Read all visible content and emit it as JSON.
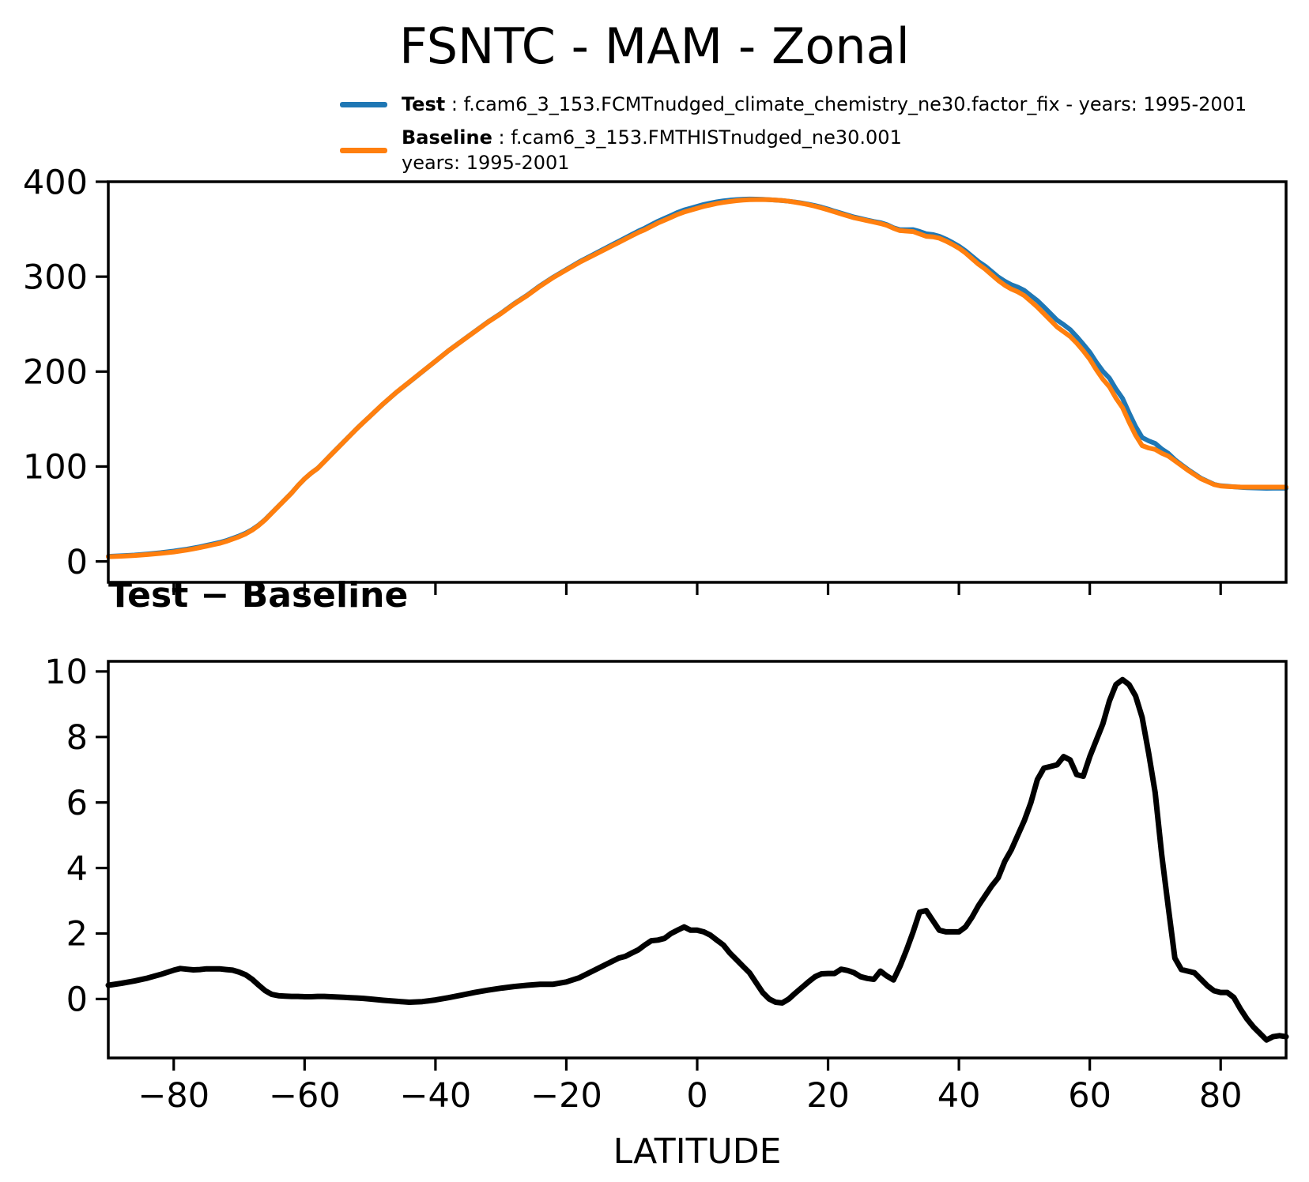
{
  "title": "FSNTC - MAM - Zonal",
  "legend": {
    "test_label": "Test",
    "test_desc": " : f.cam6_3_153.FCMTnudged_climate_chemistry_ne30.factor_fix - years: 1995-2001",
    "baseline_label": "Baseline",
    "baseline_desc": " : f.cam6_3_153.FMTHISTnudged_ne30.001",
    "baseline_years": "years: 1995-2001"
  },
  "colors": {
    "test": "#1f77b4",
    "baseline": "#ff7f0e",
    "diff": "#000000",
    "axes": "#000000"
  },
  "diff_title": "Test − Baseline",
  "xlabel": "LATITUDE",
  "chart_data": [
    {
      "type": "line",
      "title": "FSNTC - MAM - Zonal",
      "xlabel": "",
      "ylabel": "",
      "xlim": [
        -90,
        90
      ],
      "ylim": [
        -22,
        400
      ],
      "xticks": [
        -80,
        -60,
        -40,
        -20,
        0,
        20,
        40,
        60,
        80
      ],
      "yticks": [
        0,
        100,
        200,
        300,
        400
      ],
      "x_tick_labels_shown": false,
      "grid": false,
      "legend_position": "above-top-left",
      "x": [
        -90,
        -88,
        -86,
        -84,
        -82,
        -80,
        -79,
        -78,
        -77,
        -76,
        -75,
        -74,
        -73,
        -72,
        -71,
        -70,
        -69,
        -68,
        -67,
        -66,
        -65,
        -64,
        -63,
        -62,
        -61,
        -60,
        -59,
        -58,
        -57,
        -56,
        -55,
        -54,
        -53,
        -52,
        -51,
        -50,
        -48,
        -46,
        -44,
        -42,
        -40,
        -38,
        -36,
        -34,
        -32,
        -30,
        -28,
        -26,
        -24,
        -22,
        -20,
        -18,
        -16,
        -14,
        -13,
        -12,
        -11,
        -10,
        -9,
        -8,
        -7,
        -6,
        -5,
        -4,
        -3,
        -2,
        -1,
        0,
        1,
        2,
        3,
        4,
        5,
        6,
        7,
        8,
        9,
        10,
        11,
        12,
        13,
        14,
        15,
        16,
        17,
        18,
        19,
        20,
        21,
        22,
        23,
        24,
        25,
        26,
        27,
        28,
        29,
        30,
        31,
        32,
        33,
        34,
        35,
        36,
        37,
        38,
        39,
        40,
        41,
        42,
        43,
        44,
        45,
        46,
        47,
        48,
        49,
        50,
        51,
        52,
        53,
        54,
        55,
        56,
        57,
        58,
        59,
        60,
        61,
        62,
        63,
        64,
        65,
        66,
        67,
        68,
        69,
        70,
        71,
        72,
        73,
        74,
        75,
        76,
        77,
        78,
        79,
        80,
        81,
        82,
        83,
        84,
        85,
        86,
        87,
        88,
        89,
        90
      ],
      "series": [
        {
          "name": "Test",
          "values": [
            5.42,
            5.98,
            6.75,
            7.84,
            9.25,
            10.88,
            11.93,
            12.91,
            14.09,
            15.4,
            16.92,
            18.42,
            19.92,
            21.9,
            24.38,
            26.82,
            29.74,
            33.6,
            38.42,
            44.25,
            51.14,
            58.1,
            65.09,
            72.08,
            80.08,
            87.07,
            93.07,
            98.08,
            105.08,
            112.07,
            119.06,
            126.05,
            133.04,
            140.03,
            146.52,
            153,
            165.96,
            177.93,
            188.9,
            199.92,
            210.97,
            222.04,
            232.12,
            242.2,
            252.27,
            261.33,
            271.38,
            280.42,
            290.45,
            299.45,
            307.52,
            315.65,
            322.85,
            330.05,
            333.65,
            337.25,
            340.8,
            344.4,
            348,
            351.15,
            354.78,
            358.3,
            361.35,
            364.5,
            367.6,
            370.2,
            372.1,
            374.1,
            376.05,
            377.45,
            378.8,
            379.85,
            380.6,
            381.2,
            381.6,
            381.8,
            381.7,
            381.4,
            381,
            380.6,
            380.08,
            379.4,
            378.58,
            377.55,
            376.32,
            374.88,
            373.17,
            371.18,
            368.98,
            366.91,
            364.87,
            362.8,
            361.18,
            359.63,
            358.1,
            356.85,
            354.7,
            351.58,
            349.5,
            349.5,
            349.55,
            347.65,
            345.2,
            344.4,
            342.6,
            339.55,
            336.05,
            332.05,
            327.2,
            321.5,
            315.85,
            311.15,
            305.45,
            299.7,
            295.2,
            291.55,
            289,
            285.45,
            280,
            274.7,
            268.05,
            261.1,
            254.15,
            249.4,
            244.3,
            236.85,
            228.8,
            220.4,
            209.9,
            200.4,
            193.1,
            181.6,
            171.75,
            156.6,
            142.25,
            130.6,
            127,
            124.3,
            118.4,
            113.8,
            107.25,
            101.9,
            96.85,
            92.3,
            87.6,
            84.4,
            81.25,
            79.7,
            79.2,
            78.65,
            78.1,
            77.7,
            77.45,
            77.25,
            77.05,
            77.15,
            77.18,
            77.15
          ]
        },
        {
          "name": "Baseline",
          "values": [
            5,
            5.5,
            6.2,
            7.2,
            8.5,
            10,
            11,
            12,
            13.2,
            14.5,
            16,
            17.5,
            19,
            21,
            23.5,
            26,
            29,
            33,
            38,
            44,
            51,
            58,
            65,
            72,
            80,
            87,
            93,
            98,
            105,
            112,
            119,
            126,
            133,
            140,
            146.5,
            153,
            166,
            178,
            189,
            200,
            211,
            222,
            232,
            242,
            252,
            261,
            271,
            280,
            290,
            299,
            307,
            315,
            322,
            329,
            332.5,
            336,
            339.5,
            343,
            346.5,
            349.5,
            353,
            356.5,
            359.5,
            362.5,
            365.5,
            368,
            370,
            372,
            374,
            375.5,
            377,
            378.2,
            379.2,
            380,
            380.6,
            381,
            381.2,
            381.2,
            381,
            380.7,
            380.2,
            379.4,
            378.4,
            377.2,
            375.8,
            374.2,
            372.4,
            370.4,
            368.2,
            366,
            364,
            362,
            360.5,
            359,
            357.5,
            356,
            354,
            351,
            348.5,
            348,
            347.5,
            345,
            342.5,
            342,
            340.5,
            337.5,
            334,
            330,
            325,
            319,
            313,
            308,
            302,
            296,
            291,
            287,
            284,
            280,
            274,
            268,
            261,
            254,
            247,
            242,
            237,
            230,
            222,
            213,
            202,
            192,
            184,
            172,
            162,
            147,
            133,
            122,
            119.5,
            118,
            114,
            111,
            106,
            101,
            96,
            91.5,
            87,
            84,
            81,
            79.5,
            79,
            78.6,
            78.4,
            78.3,
            78.3,
            78.3,
            78.3,
            78.3,
            78.3,
            78.3
          ]
        }
      ]
    },
    {
      "type": "line",
      "title": "Test − Baseline",
      "xlabel": "LATITUDE",
      "ylabel": "",
      "xlim": [
        -90,
        90
      ],
      "ylim": [
        -1.8,
        10.31
      ],
      "xticks": [
        -80,
        -60,
        -40,
        -20,
        0,
        20,
        40,
        60,
        80
      ],
      "yticks": [
        0,
        2,
        4,
        6,
        8,
        10
      ],
      "x_tick_labels_shown": true,
      "grid": false,
      "x": [
        -90,
        -88,
        -86,
        -84,
        -82,
        -80,
        -79,
        -78,
        -77,
        -76,
        -75,
        -74,
        -73,
        -72,
        -71,
        -70,
        -69,
        -68,
        -67,
        -66,
        -65,
        -64,
        -63,
        -62,
        -61,
        -60,
        -59,
        -58,
        -57,
        -56,
        -55,
        -54,
        -53,
        -52,
        -51,
        -50,
        -48,
        -46,
        -44,
        -42,
        -40,
        -38,
        -36,
        -34,
        -32,
        -30,
        -28,
        -26,
        -24,
        -22,
        -20,
        -18,
        -16,
        -14,
        -13,
        -12,
        -11,
        -10,
        -9,
        -8,
        -7,
        -6,
        -5,
        -4,
        -3,
        -2,
        -1,
        0,
        1,
        2,
        3,
        4,
        5,
        6,
        7,
        8,
        9,
        10,
        11,
        12,
        13,
        14,
        15,
        16,
        17,
        18,
        19,
        20,
        21,
        22,
        23,
        24,
        25,
        26,
        27,
        28,
        29,
        30,
        31,
        32,
        33,
        34,
        35,
        36,
        37,
        38,
        39,
        40,
        41,
        42,
        43,
        44,
        45,
        46,
        47,
        48,
        49,
        50,
        51,
        52,
        53,
        54,
        55,
        56,
        57,
        58,
        59,
        60,
        61,
        62,
        63,
        64,
        65,
        66,
        67,
        68,
        69,
        70,
        71,
        72,
        73,
        74,
        75,
        76,
        77,
        78,
        79,
        80,
        81,
        82,
        83,
        84,
        85,
        86,
        87,
        88,
        89,
        90
      ],
      "series": [
        {
          "name": "Test − Baseline",
          "values": [
            0.42,
            0.48,
            0.55,
            0.64,
            0.75,
            0.88,
            0.93,
            0.91,
            0.89,
            0.9,
            0.92,
            0.92,
            0.92,
            0.9,
            0.88,
            0.82,
            0.74,
            0.6,
            0.42,
            0.25,
            0.14,
            0.1,
            0.09,
            0.08,
            0.08,
            0.07,
            0.07,
            0.08,
            0.08,
            0.07,
            0.06,
            0.05,
            0.04,
            0.03,
            0.02,
            0,
            -0.04,
            -0.07,
            -0.1,
            -0.08,
            -0.03,
            0.04,
            0.12,
            0.2,
            0.27,
            0.33,
            0.38,
            0.42,
            0.45,
            0.45,
            0.52,
            0.65,
            0.85,
            1.05,
            1.15,
            1.25,
            1.3,
            1.4,
            1.5,
            1.65,
            1.78,
            1.8,
            1.85,
            2,
            2.1,
            2.2,
            2.1,
            2.1,
            2.05,
            1.95,
            1.8,
            1.65,
            1.4,
            1.2,
            1,
            0.8,
            0.5,
            0.2,
            0,
            -0.1,
            -0.12,
            0,
            0.18,
            0.35,
            0.52,
            0.68,
            0.77,
            0.78,
            0.78,
            0.91,
            0.87,
            0.8,
            0.68,
            0.63,
            0.6,
            0.85,
            0.7,
            0.58,
            1,
            1.5,
            2.05,
            2.65,
            2.7,
            2.4,
            2.1,
            2.05,
            2.05,
            2.05,
            2.2,
            2.5,
            2.85,
            3.15,
            3.45,
            3.7,
            4.2,
            4.55,
            5,
            5.45,
            6,
            6.7,
            7.05,
            7.1,
            7.15,
            7.4,
            7.3,
            6.85,
            6.8,
            7.4,
            7.9,
            8.4,
            9.1,
            9.6,
            9.75,
            9.6,
            9.25,
            8.6,
            7.5,
            6.3,
            4.4,
            2.8,
            1.25,
            0.9,
            0.85,
            0.8,
            0.6,
            0.4,
            0.25,
            0.2,
            0.2,
            0.05,
            -0.3,
            -0.6,
            -0.85,
            -1.05,
            -1.25,
            -1.15,
            -1.12,
            -1.15
          ]
        }
      ]
    }
  ]
}
